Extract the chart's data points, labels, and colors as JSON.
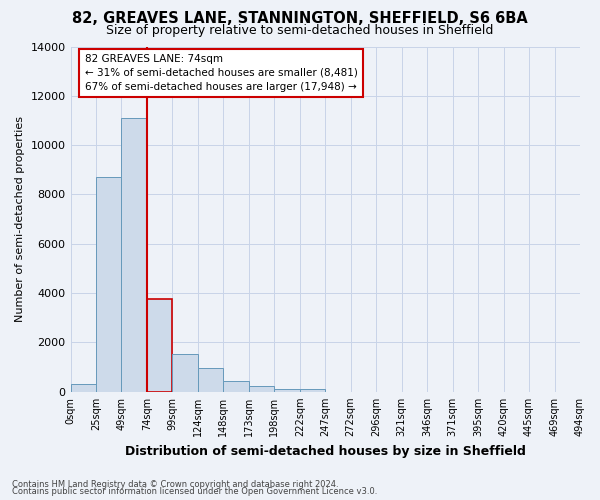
{
  "title1": "82, GREAVES LANE, STANNINGTON, SHEFFIELD, S6 6BA",
  "title2": "Size of property relative to semi-detached houses in Sheffield",
  "xlabel": "Distribution of semi-detached houses by size in Sheffield",
  "ylabel": "Number of semi-detached properties",
  "footnote1": "Contains HM Land Registry data © Crown copyright and database right 2024.",
  "footnote2": "Contains public sector information licensed under the Open Government Licence v3.0.",
  "annotation_line1": "82 GREAVES LANE: 74sqm",
  "annotation_line2": "← 31% of semi-detached houses are smaller (8,481)",
  "annotation_line3": "67% of semi-detached houses are larger (17,948) →",
  "bar_values": [
    300,
    8700,
    11100,
    3750,
    1520,
    960,
    430,
    230,
    130,
    110,
    0,
    0,
    0,
    0,
    0,
    0,
    0,
    0,
    0,
    0
  ],
  "bin_labels": [
    "0sqm",
    "25sqm",
    "49sqm",
    "74sqm",
    "99sqm",
    "124sqm",
    "148sqm",
    "173sqm",
    "198sqm",
    "222sqm",
    "247sqm",
    "272sqm",
    "296sqm",
    "321sqm",
    "346sqm",
    "371sqm",
    "395sqm",
    "420sqm",
    "445sqm",
    "469sqm",
    "494sqm"
  ],
  "bar_color": "#cddaea",
  "bar_edge_color": "#6699bb",
  "highlight_bar_index": 3,
  "highlight_edge_color": "#cc0000",
  "vline_color": "#cc0000",
  "vline_x_index": 3,
  "ylim": [
    0,
    14000
  ],
  "yticks": [
    0,
    2000,
    4000,
    6000,
    8000,
    10000,
    12000,
    14000
  ],
  "grid_color": "#c8d4e8",
  "bg_color": "#eef2f8",
  "title1_fontsize": 10.5,
  "title2_fontsize": 9,
  "xlabel_fontsize": 9,
  "ylabel_fontsize": 8,
  "ytick_fontsize": 8,
  "xtick_fontsize": 7,
  "n_bins": 20
}
